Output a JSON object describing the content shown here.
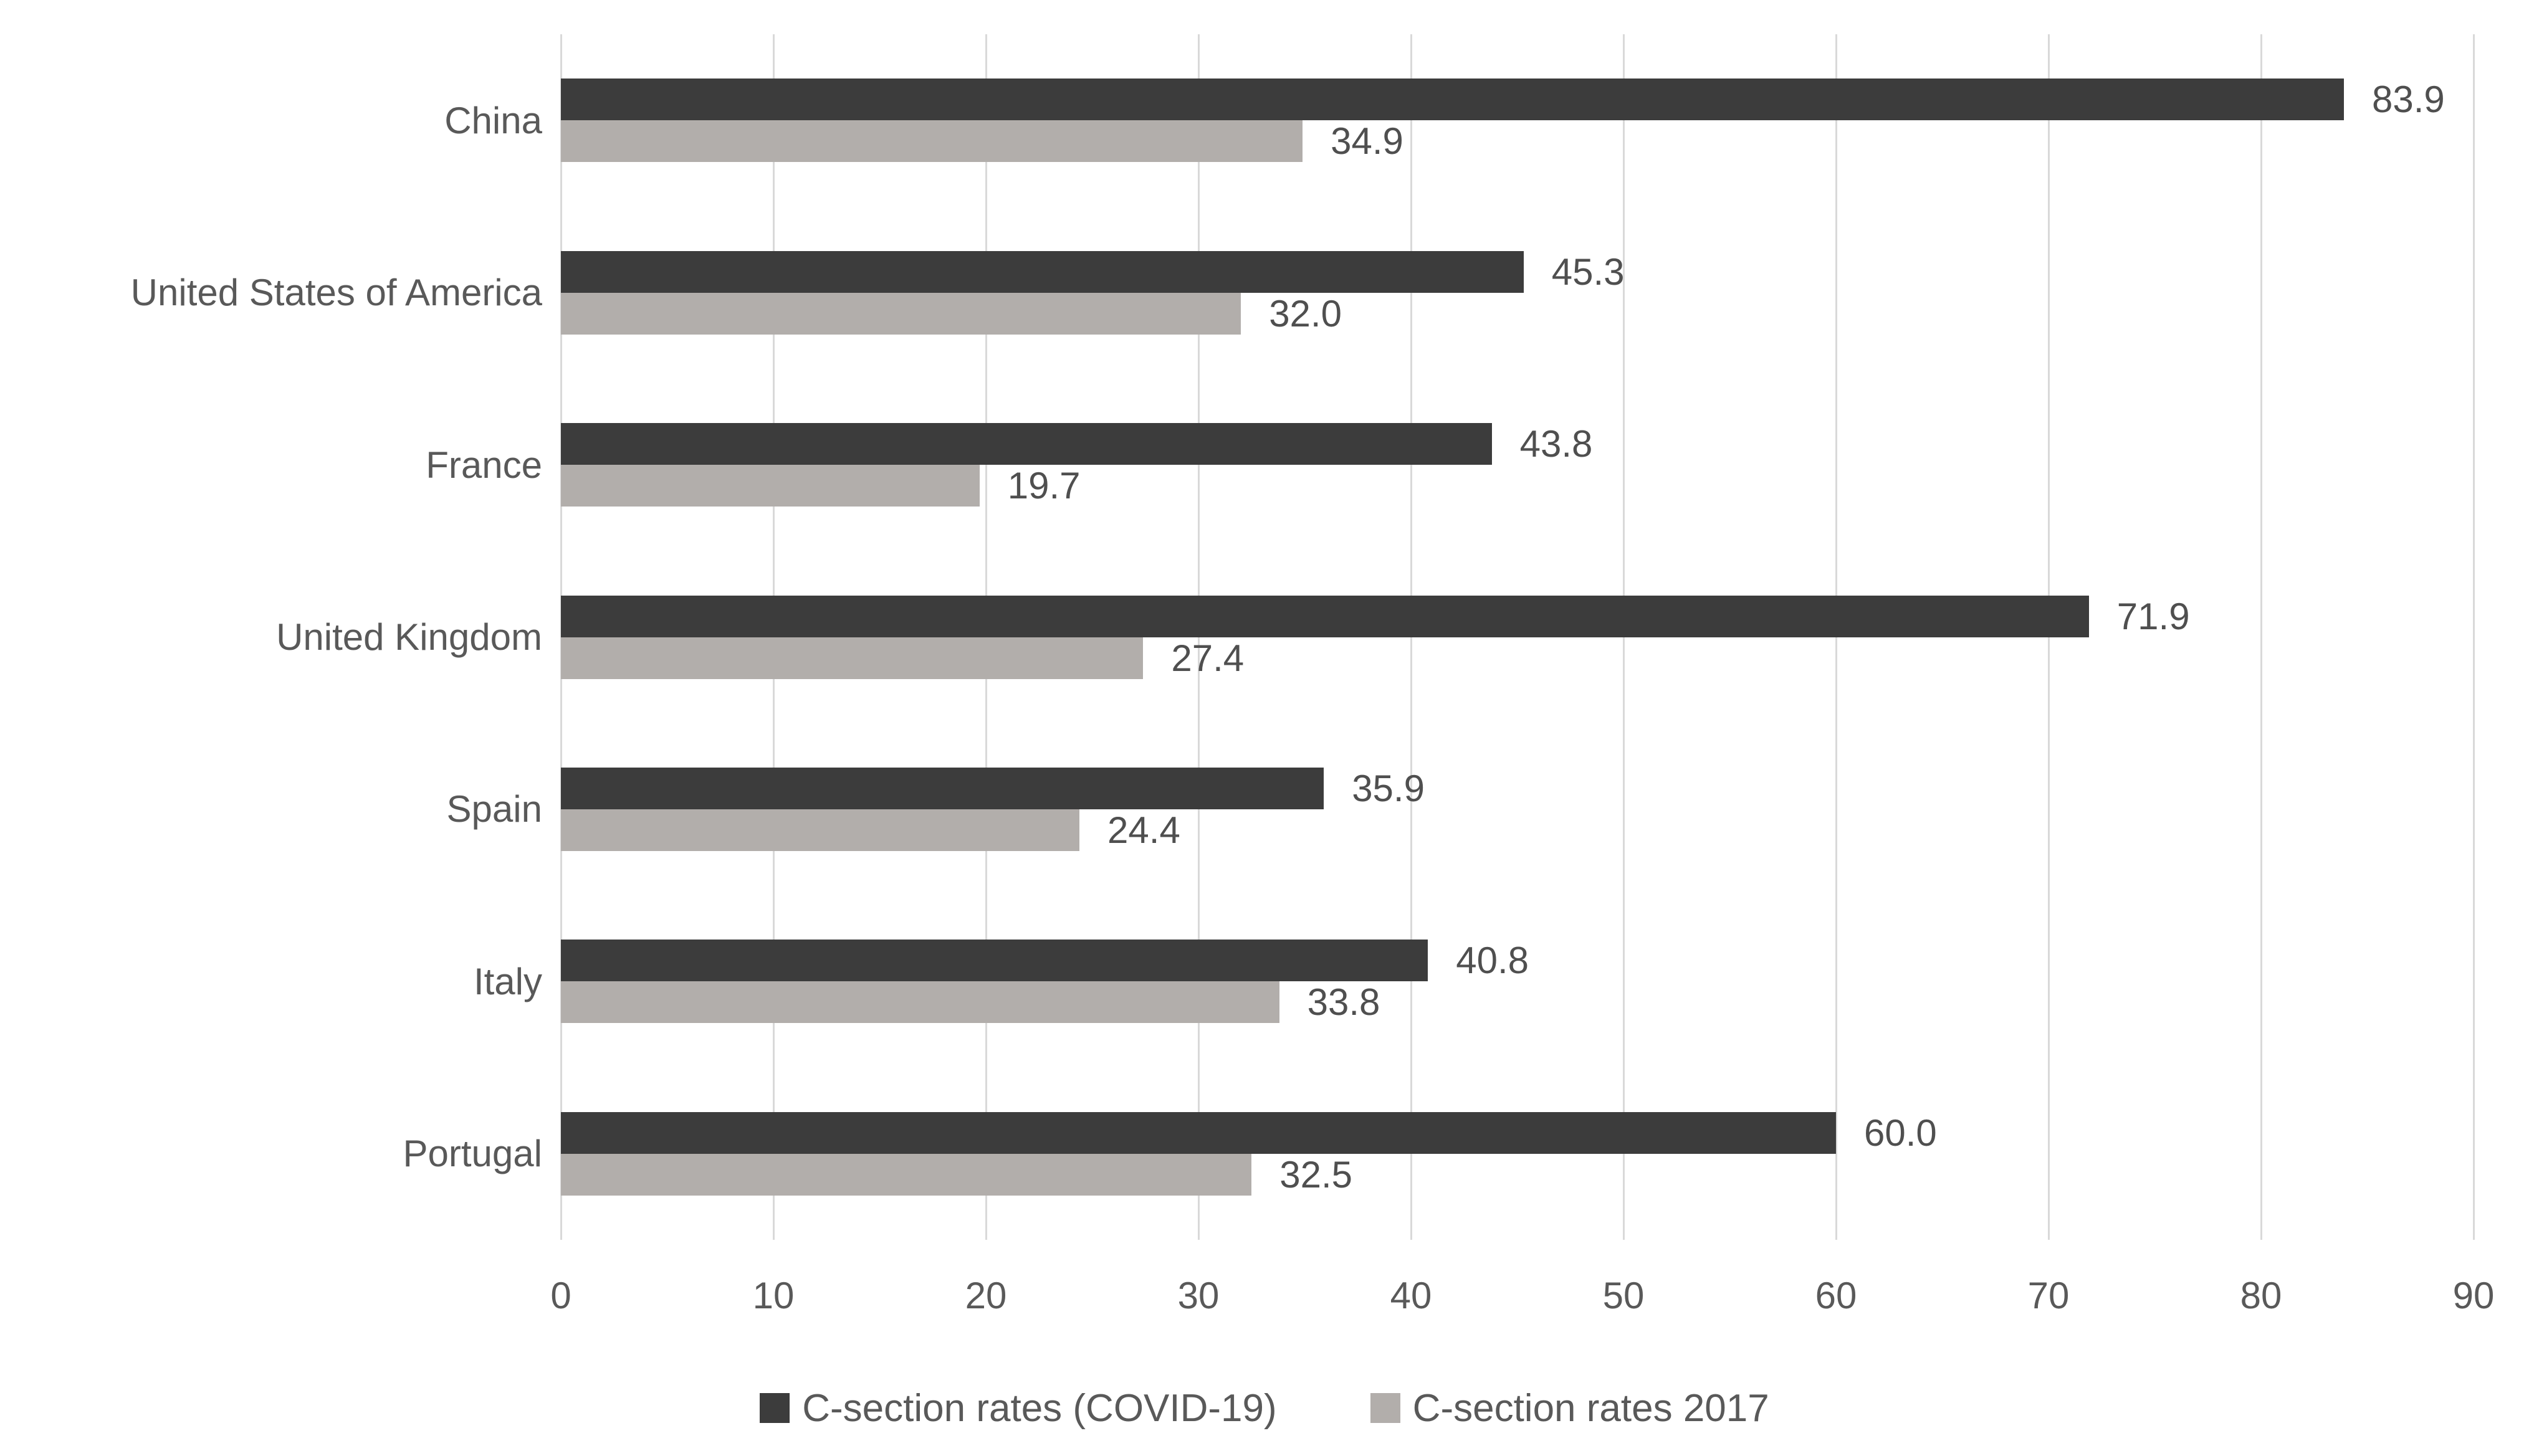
{
  "chart_data": {
    "type": "bar",
    "orientation": "horizontal",
    "title": "",
    "xlabel": "",
    "ylabel": "",
    "categories": [
      "China",
      "United States of America",
      "France",
      "United Kingdom",
      "Spain",
      "Italy",
      "Portugal"
    ],
    "series": [
      {
        "name": "C-section rates (COVID-19)",
        "color": "#3c3c3c",
        "values": [
          83.9,
          45.3,
          43.8,
          71.9,
          35.9,
          40.8,
          60.0
        ]
      },
      {
        "name": "C-section rates 2017",
        "color": "#b2aeab",
        "values": [
          34.9,
          32.0,
          19.7,
          27.4,
          24.4,
          33.8,
          32.5
        ]
      }
    ],
    "value_label_decimals": 1,
    "xlim": [
      0,
      90
    ],
    "xticks": [
      0,
      10,
      20,
      30,
      40,
      50,
      60,
      70,
      80,
      90
    ],
    "grid": "vertical",
    "gridline_color": "#d9d9d9",
    "legend_position": "bottom",
    "text_colors": {
      "category": "#595959",
      "tick": "#595959",
      "value_label": "#4f4f4f",
      "legend": "#595959"
    }
  }
}
